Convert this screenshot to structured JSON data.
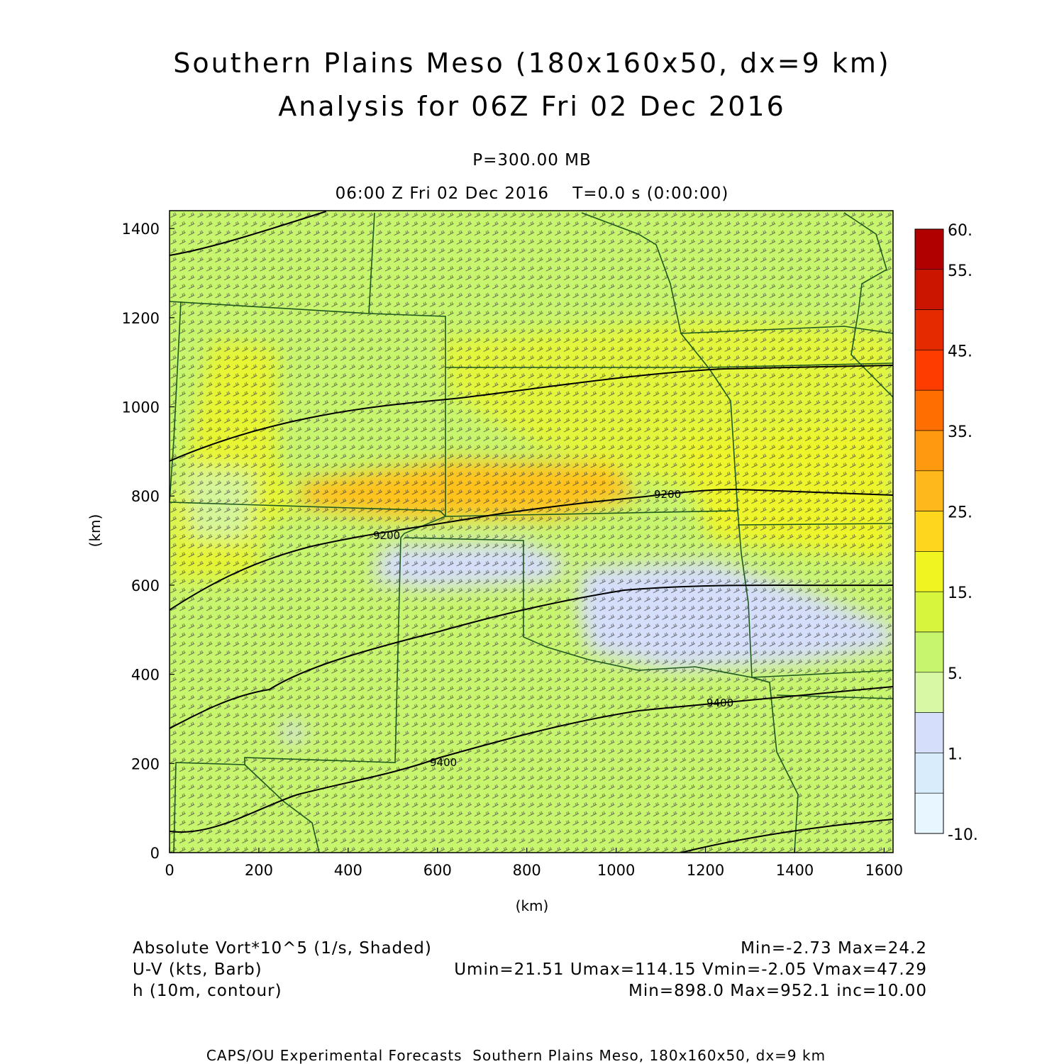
{
  "header": {
    "title_line1": "Southern Plains Meso (180x160x50, dx=9 km)",
    "title_line2": "Analysis for 06Z Fri 02 Dec 2016",
    "level": "P=300.00 MB",
    "time": "06:00 Z Fri 02 Dec 2016    T=0.0 s (0:00:00)"
  },
  "axes": {
    "x_label": "(km)",
    "y_label": "(km)",
    "x_ticks": [
      "0",
      "200",
      "400",
      "600",
      "800",
      "1000",
      "1200",
      "1400",
      "1600"
    ],
    "y_ticks": [
      "0",
      "200",
      "400",
      "600",
      "800",
      "1000",
      "1200",
      "1400"
    ],
    "x_range": [
      0,
      1620
    ],
    "y_range": [
      0,
      1440
    ]
  },
  "colorbar": {
    "labels": [
      "60.",
      "55.",
      "45.",
      "35.",
      "25.",
      "15.",
      "5.",
      "1.",
      "-10."
    ],
    "colors_top_to_bottom": [
      "#b00000",
      "#cc1500",
      "#e62a00",
      "#ff3c00",
      "#ff6e00",
      "#ff9a10",
      "#ffb81c",
      "#ffd61e",
      "#f0f522",
      "#d6f53c",
      "#c8f56e",
      "#d8f8a6",
      "#d5defa",
      "#d8ecfc",
      "#e8f7ff"
    ]
  },
  "contour_labels": [
    "9200",
    "9200",
    "9400",
    "9400"
  ],
  "footer": {
    "line1_left": "Absolute Vort*10^5 (1/s, Shaded)",
    "line1_right": "Min=-2.73 Max=24.2",
    "line2_left": "U-V (kts, Barb)",
    "line2_right": "Umin=21.51 Umax=114.15 Vmin=-2.05 Vmax=47.29",
    "line3_left": "h (10m, contour)",
    "line3_right": "Min=898.0 Max=952.1 inc=10.00",
    "credit": "CAPS/OU Experimental Forecasts  Southern Plains Meso, 180x160x50, dx=9 km"
  },
  "colors": {
    "background_field": "#c8f56e",
    "state_lines": "#1f5a1f",
    "contours": "#000000"
  }
}
